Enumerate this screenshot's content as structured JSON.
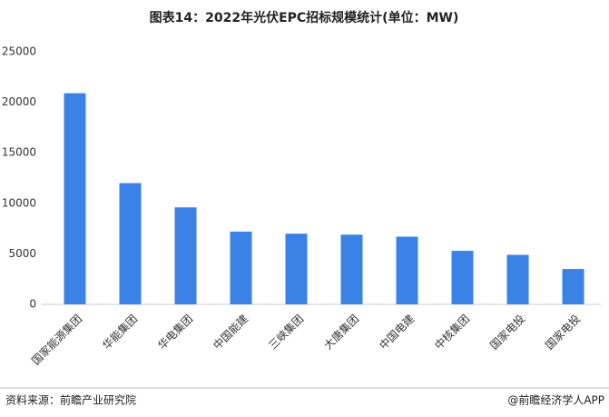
{
  "chart_data": {
    "type": "bar",
    "title": "图表14：2022年光伏EPC招标规模统计(单位：MW)",
    "categories": [
      "国家能源集团",
      "华能集团",
      "华电集团",
      "中国能建",
      "三峡集团",
      "大唐集团",
      "中国电建",
      "中核集团",
      "国家电投",
      "国家电投"
    ],
    "values": [
      20900,
      12000,
      9600,
      7200,
      7000,
      6900,
      6700,
      5300,
      4900,
      3500
    ],
    "color": "#3b82e6",
    "ylim": [
      0,
      25000
    ],
    "yticks": [
      0,
      5000,
      10000,
      15000,
      20000,
      25000
    ],
    "grid": false
  },
  "source": "资料来源：前瞻产业研究院",
  "credit": "@前瞻经济学人APP"
}
